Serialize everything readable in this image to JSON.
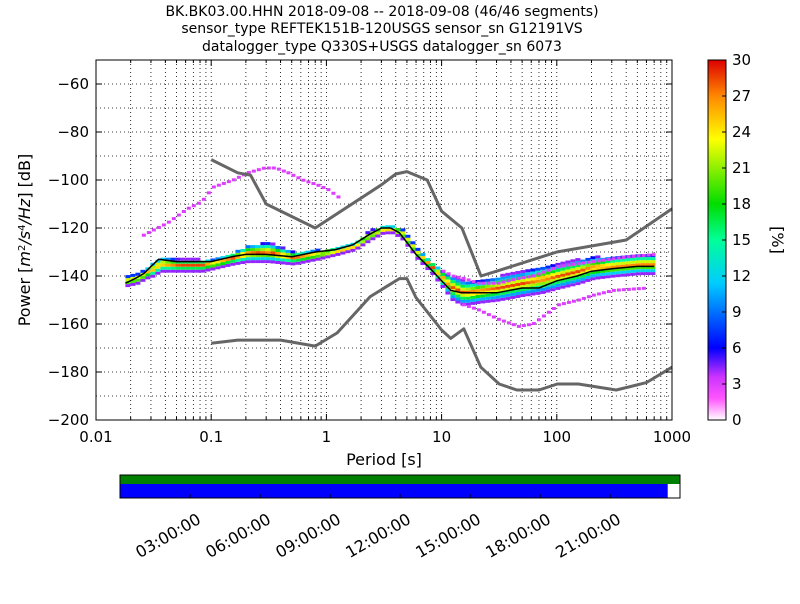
{
  "title_lines": [
    "BK.BK03.00.HHN   2018-09-08 -- 2018-09-08  (46/46 segments)",
    "sensor_type REFTEK151B-120USGS sensor_sn G12191VS",
    "datalogger_type Q330S+USGS datalogger_sn 6073"
  ],
  "colors": {
    "noise_model": "#666666",
    "mean_curve": "#000000",
    "coverage_top": "#008000",
    "coverage_bottom": "#0000ff",
    "grid": "#000000"
  },
  "colorbar": {
    "label": "[%]",
    "ticks": [
      "0",
      "3",
      "6",
      "9",
      "12",
      "15",
      "18",
      "21",
      "24",
      "27",
      "30"
    ],
    "range": [
      0,
      30
    ],
    "colormap": "pqlx (white-magenta-blue-cyan-green-yellow-red)"
  },
  "coverage": {
    "time_ticks": [
      "03:00:00",
      "06:00:00",
      "09:00:00",
      "12:00:00",
      "15:00:00",
      "18:00:00",
      "21:00:00"
    ],
    "coverage_fraction": 0.978
  },
  "chart_data": {
    "type": "heatmap",
    "xlabel": "Period [s]",
    "ylabel": "Power [m²/s⁴/Hz] [dB]",
    "xscale": "log",
    "xlim": [
      0.01,
      1000
    ],
    "ylim": [
      -200,
      -50
    ],
    "xticks": [
      "0.01",
      "0.1",
      "1",
      "10",
      "100",
      "1000"
    ],
    "yticks": [
      "−60",
      "−80",
      "−100",
      "−120",
      "−140",
      "−160",
      "−180",
      "−200"
    ],
    "grid": true,
    "series": [
      {
        "name": "",
        "role": "upper_noise_model",
        "x": [
          0.1,
          0.17,
          0.22,
          0.3,
          0.8,
          3.0,
          4.0,
          5.0,
          7.5,
          10,
          15,
          22,
          30,
          100,
          400,
          1000
        ],
        "y": [
          -91.5,
          -97,
          -98,
          -110,
          -120,
          -102,
          -97.5,
          -96.5,
          -100,
          -113,
          -120,
          -140,
          -138,
          -130,
          -125,
          -112
        ]
      },
      {
        "name": "",
        "role": "lower_noise_model",
        "x": [
          0.1,
          0.17,
          0.4,
          0.8,
          1.24,
          2.4,
          4.3,
          5,
          6,
          10,
          12,
          15.6,
          21.9,
          31.6,
          45,
          70,
          101,
          154,
          328,
          600,
          1000
        ],
        "y": [
          -168,
          -166.7,
          -166.7,
          -169.2,
          -163.7,
          -148.6,
          -141.1,
          -141.1,
          -149,
          -162.5,
          -166,
          -162,
          -178,
          -185,
          -187.5,
          -187.5,
          -185,
          -185,
          -187.5,
          -184.4,
          -178
        ]
      },
      {
        "name": "",
        "role": "mean_psd",
        "x": [
          0.018,
          0.022,
          0.026,
          0.03,
          0.035,
          0.05,
          0.08,
          0.1,
          0.15,
          0.2,
          0.3,
          0.5,
          0.8,
          1.2,
          1.7,
          2.3,
          3.0,
          3.6,
          4.3,
          5,
          6,
          8,
          10,
          12,
          15,
          20,
          30,
          50,
          70,
          100,
          150,
          200,
          300,
          500,
          700
        ],
        "y": [
          -143,
          -141,
          -139,
          -136,
          -133,
          -134,
          -134,
          -134,
          -132,
          -131,
          -131,
          -132,
          -130,
          -129,
          -127,
          -123,
          -120,
          -120,
          -122,
          -126,
          -131,
          -137,
          -142,
          -146,
          -147,
          -147,
          -147,
          -145,
          -145,
          -142,
          -140,
          -138,
          -137,
          -136,
          -136
        ]
      }
    ],
    "density_bands": [
      {
        "x": [
          0.018,
          0.022,
          0.026,
          0.03,
          0.035,
          0.05,
          0.08,
          0.1,
          0.15,
          0.2,
          0.3,
          0.5,
          0.8,
          1.2,
          1.7,
          2.3,
          3.0,
          3.6,
          4.3,
          5,
          6,
          8,
          10,
          12,
          15,
          20,
          30,
          50,
          70,
          100,
          150,
          200,
          300,
          500,
          700
        ],
        "y_low": [
          -144,
          -143,
          -141,
          -140,
          -138,
          -138,
          -138,
          -137,
          -135,
          -134,
          -134,
          -135,
          -133,
          -131,
          -129,
          -125,
          -122,
          -122,
          -124,
          -128,
          -133,
          -139,
          -145,
          -150,
          -152,
          -151,
          -150,
          -148,
          -147,
          -145,
          -143,
          -141,
          -140,
          -139,
          -139
        ],
        "y_high": [
          -140,
          -139,
          -137,
          -134,
          -132,
          -133,
          -133,
          -133,
          -130,
          -127,
          -126,
          -130,
          -129,
          -128,
          -126,
          -121,
          -119,
          -119,
          -120,
          -124,
          -129,
          -134,
          -138,
          -140,
          -142,
          -142,
          -140,
          -138,
          -136,
          -135,
          -133,
          -132,
          -132,
          -131,
          -131
        ],
        "percent": 15
      },
      {
        "x": [
          0.025,
          0.03,
          0.04,
          0.06,
          0.08,
          0.1,
          0.15,
          0.2,
          0.28,
          0.35,
          0.45
        ],
        "y": [
          -123,
          -121,
          -118,
          -112,
          -109,
          -103,
          -100,
          -97,
          -95,
          -95,
          -97
        ],
        "percent": 2,
        "note": "upper sparse arc"
      },
      {
        "x": [
          0.45,
          0.6,
          0.8,
          1.0,
          1.3
        ],
        "y": [
          -97,
          -100,
          -102,
          -104,
          -108
        ],
        "percent": 2
      },
      {
        "x": [
          10,
          12,
          15,
          20,
          30,
          45,
          60,
          100,
          200,
          400,
          700
        ],
        "y": [
          -138,
          -140,
          -141,
          -143,
          -143,
          -141,
          -140,
          -136,
          -134,
          -132,
          -131
        ],
        "percent": 2
      },
      {
        "x": [
          15,
          20,
          30,
          45,
          60,
          100,
          150,
          200,
          300,
          600
        ],
        "y": [
          -152,
          -154,
          -158,
          -161,
          -160,
          -152,
          -150,
          -148,
          -146,
          -145
        ],
        "percent": 2
      }
    ]
  }
}
